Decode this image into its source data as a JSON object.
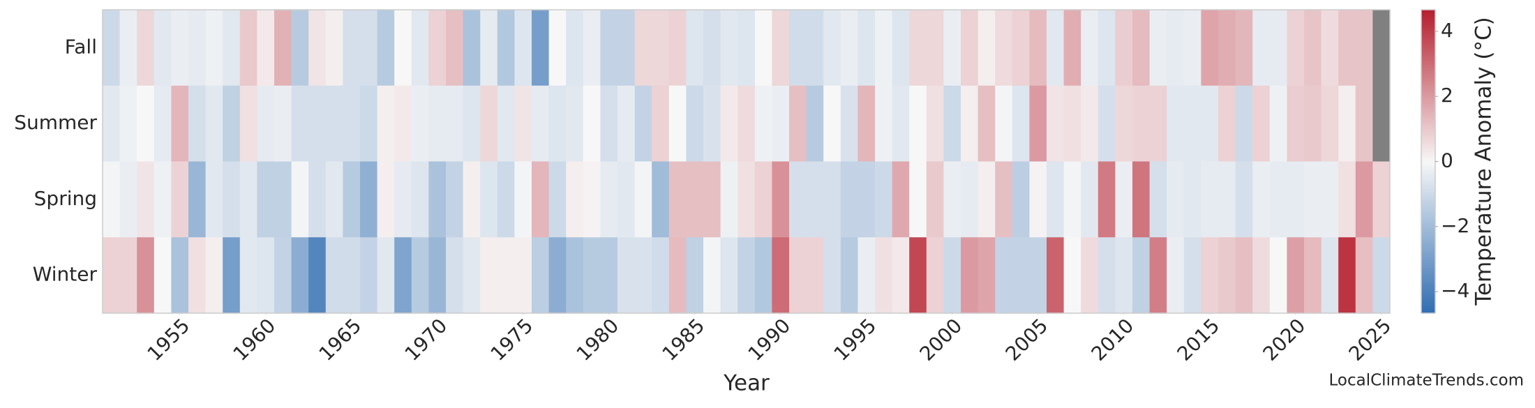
{
  "chart_data": {
    "type": "heatmap",
    "xlabel": "Year",
    "colorbar_label": "Temperature Anomaly (°C)",
    "watermark": "LocalClimateTrends.com",
    "x": [
      1951,
      1952,
      1953,
      1954,
      1955,
      1956,
      1957,
      1958,
      1959,
      1960,
      1961,
      1962,
      1963,
      1964,
      1965,
      1966,
      1967,
      1968,
      1969,
      1970,
      1971,
      1972,
      1973,
      1974,
      1975,
      1976,
      1977,
      1978,
      1979,
      1980,
      1981,
      1982,
      1983,
      1984,
      1985,
      1986,
      1987,
      1988,
      1989,
      1990,
      1991,
      1992,
      1993,
      1994,
      1995,
      1996,
      1997,
      1998,
      1999,
      2000,
      2001,
      2002,
      2003,
      2004,
      2005,
      2006,
      2007,
      2008,
      2009,
      2010,
      2011,
      2012,
      2013,
      2014,
      2015,
      2016,
      2017,
      2018,
      2019,
      2020,
      2021,
      2022,
      2023,
      2024,
      2025
    ],
    "xlim": [
      1950.5,
      2025.5
    ],
    "xticks": [
      1955,
      1960,
      1965,
      1970,
      1975,
      1980,
      1985,
      1990,
      1995,
      2000,
      2005,
      2010,
      2015,
      2020,
      2025
    ],
    "y": [
      "Fall",
      "Summer",
      "Spring",
      "Winter"
    ],
    "z": [
      [
        -1,
        -0.3,
        0.7,
        -0.5,
        -0.3,
        -0.4,
        -0.2,
        -0.5,
        1,
        0.3,
        1.5,
        -1.5,
        0.4,
        0.2,
        -0.8,
        -0.8,
        -1.5,
        0,
        -0.5,
        0.8,
        1.2,
        -1.8,
        -0.4,
        -1.6,
        -0.6,
        -3,
        0,
        -0.6,
        -0.3,
        -1.2,
        -1.2,
        0.7,
        0.7,
        0.8,
        -0.6,
        -0.8,
        -0.5,
        -0.6,
        0,
        0.7,
        -0.9,
        -0.9,
        -0.5,
        -0.3,
        -0.6,
        -0.2,
        -0.6,
        0.7,
        0.7,
        -0.3,
        0.8,
        0.2,
        0.6,
        0.8,
        1.3,
        -0.5,
        1.6,
        -0.3,
        -0.6,
        0.9,
        1.3,
        -0.3,
        -0.4,
        -0.3,
        1.8,
        1.6,
        1.4,
        -0.4,
        -0.4,
        0.8,
        1.1,
        0.6,
        1.1,
        1.1,
        null
      ],
      [
        -0.5,
        -0.2,
        0,
        -0.4,
        1.4,
        -0.8,
        -0.5,
        -1.3,
        0.5,
        -0.4,
        -0.3,
        -0.8,
        -0.8,
        -0.8,
        -0.8,
        -1,
        0.2,
        0.3,
        -0.3,
        -0.4,
        -0.4,
        -0.6,
        0.7,
        -0.5,
        0.4,
        -0.4,
        -0.6,
        -0.5,
        0,
        -0.8,
        -0.4,
        -1.2,
        0.8,
        0,
        -1,
        -0.7,
        0.3,
        0.6,
        -0.2,
        -0.3,
        1.2,
        -1.5,
        0,
        -0.7,
        1.4,
        -0.2,
        -0.5,
        0,
        0.5,
        -1,
        0.2,
        1.2,
        -0.1,
        -0.6,
        2,
        0.4,
        0.5,
        0.3,
        -0.8,
        0.7,
        0.8,
        0.8,
        -0.5,
        -0.5,
        -0.5,
        0.8,
        -1,
        0.8,
        -0.2,
        0.9,
        1,
        0.7,
        0.2,
        1.1,
        null
      ],
      [
        -0.1,
        -0.3,
        0.4,
        -0.2,
        0.8,
        -2.2,
        -0.5,
        -0.8,
        -0.5,
        -1.3,
        -1.3,
        -0.1,
        -0.8,
        -0.5,
        -1.5,
        -2.4,
        0.2,
        -0.4,
        -0.6,
        -1.8,
        -1.2,
        0.2,
        -0.6,
        -1,
        -0.1,
        1.4,
        -1,
        0.2,
        0.1,
        -0.4,
        -0.5,
        -0.1,
        -2,
        1.2,
        1.2,
        1.2,
        -0.2,
        0.5,
        0.8,
        2.2,
        -0.8,
        -0.8,
        -0.8,
        -1.2,
        -1.2,
        -1,
        1.7,
        0,
        1,
        -0.3,
        -0.4,
        0.2,
        1.2,
        -1.4,
        0.1,
        -0.6,
        -0.1,
        -0.5,
        2.7,
        -0.3,
        2.8,
        -0.8,
        -0.4,
        -0.5,
        -0.4,
        -0.4,
        -0.8,
        -0.3,
        -0.4,
        -0.4,
        -0.3,
        -0.3,
        0.5,
        2,
        0.8
      ],
      [
        0.8,
        0.8,
        2.2,
        0,
        -1.8,
        0.5,
        0.2,
        -3,
        -0.5,
        -0.6,
        -1.2,
        -2.5,
        -3.8,
        -0.9,
        -0.9,
        -1.2,
        -0.5,
        -2.8,
        -1.5,
        -2.2,
        -0.8,
        -0.5,
        0.2,
        0.2,
        0.2,
        -1.4,
        -2.5,
        -1.8,
        -1.5,
        -1.5,
        -0.7,
        -0.7,
        -0.9,
        1.3,
        -1.3,
        -0.1,
        -0.6,
        -1.2,
        -1.6,
        3,
        0.8,
        0.8,
        -0.8,
        -1.5,
        -0.3,
        0.5,
        0.3,
        3.8,
        0.8,
        -1,
        2,
        1.8,
        -1.2,
        -1.2,
        -1.2,
        3.2,
        0,
        0.6,
        -0.8,
        -0.6,
        -1.3,
        2.6,
        -0.3,
        -0.8,
        0.8,
        1,
        1.2,
        0.6,
        0,
        1.9,
        1.3,
        -0.6,
        4.2,
        1.2,
        -1
      ]
    ],
    "zlim": [
      -4.66,
      4.66
    ],
    "zticks": [
      {
        "value": -4,
        "label": "−4"
      },
      {
        "value": -2,
        "label": "−2"
      },
      0,
      2,
      4
    ],
    "colormap": [
      "#2f6db1",
      "#f7f7f7",
      "#b51f2e"
    ],
    "nan_color": "#808080"
  }
}
